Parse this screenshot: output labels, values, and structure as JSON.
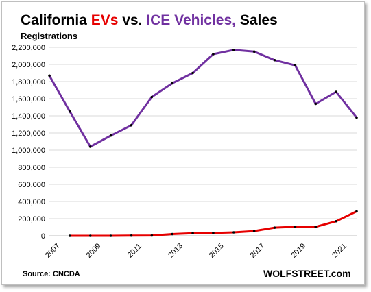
{
  "header": {
    "title_part1": "California ",
    "title_evs": "EVs",
    "title_part2": " vs. ",
    "title_ice": "ICE Vehicles,",
    "title_part3": " Sales",
    "subtitle": "Registrations"
  },
  "footer": {
    "source": "Source: CNCDA",
    "brand": "WOLFSTREET.com"
  },
  "colors": {
    "ev": "#e60000",
    "ice": "#7030a0",
    "grid": "#d9d9d9",
    "marker": "#000000"
  },
  "chart_data": {
    "type": "line",
    "title": "California EVs vs. ICE Vehicles, Sales",
    "ylabel": "Registrations",
    "xlabel": "",
    "ylim": [
      0,
      2200000
    ],
    "yticks": [
      0,
      200000,
      400000,
      600000,
      800000,
      1000000,
      1200000,
      1400000,
      1600000,
      1800000,
      2000000,
      2200000
    ],
    "yticklabels": [
      "0",
      "200,000",
      "400,000",
      "600,000",
      "800,000",
      "1,000,000",
      "1,200,000",
      "1,400,000",
      "1,600,000",
      "1,800,000",
      "2,000,000",
      "2,200,000"
    ],
    "xlim": [
      2007,
      2022
    ],
    "xticks": [
      2007,
      2009,
      2011,
      2013,
      2015,
      2017,
      2019,
      2021
    ],
    "xticklabels": [
      "2007",
      "2009",
      "2011",
      "2013",
      "2015",
      "2017",
      "2019",
      "2021"
    ],
    "grid": true,
    "series": [
      {
        "key": "ice",
        "x": [
          2007,
          2008,
          2009,
          2010,
          2011,
          2012,
          2013,
          2014,
          2015,
          2016,
          2017,
          2018,
          2019,
          2020,
          2021,
          2022
        ],
        "values": [
          1870000,
          1450000,
          1040000,
          1170000,
          1290000,
          1620000,
          1780000,
          1900000,
          2120000,
          2170000,
          2150000,
          2050000,
          1990000,
          1540000,
          1680000,
          1380000
        ]
      },
      {
        "key": "ev",
        "x": [
          2008,
          2009,
          2010,
          2011,
          2012,
          2013,
          2014,
          2015,
          2016,
          2017,
          2018,
          2019,
          2020,
          2021,
          2022
        ],
        "values": [
          0,
          0,
          0,
          2000,
          3000,
          20000,
          30000,
          33000,
          40000,
          55000,
          95000,
          105000,
          105000,
          170000,
          285000
        ]
      }
    ]
  }
}
